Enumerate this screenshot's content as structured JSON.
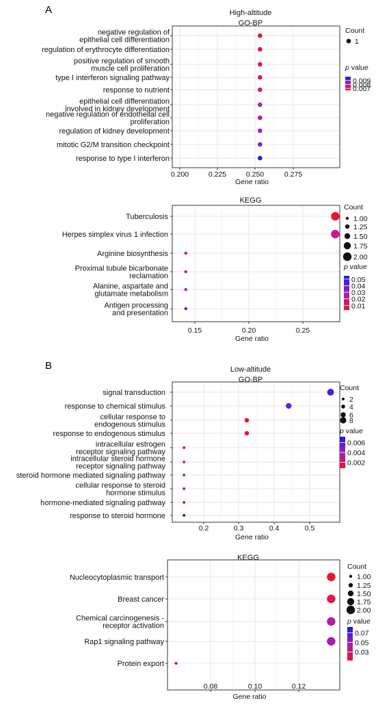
{
  "panels": [
    {
      "letter": "A"
    },
    {
      "letter": "B"
    }
  ],
  "chart_data": [
    {
      "type": "scatter",
      "title": "High-altitude",
      "subtitle": "GO-BP",
      "xlabel": "Gene ratio",
      "xlim": [
        0.195,
        0.3
      ],
      "xticks": [
        "0.200",
        "0.225",
        "0.250",
        "0.275"
      ],
      "categories": [
        "negative regulation of\nepithelial cell differentiation",
        "regulation of erythrocyte differentiation",
        "positive regulation of smooth\nmuscle cell proliferation",
        "type I interferon signaling pathway",
        "response to nutrient",
        "epithelial cell differentiation\ninvolved in kidney development",
        "negative regulation of endothelial cell\nproliferation",
        "regulation of kidney development",
        "mitotic G2/M transition checkpoint",
        "response to type I interferon"
      ],
      "x": [
        0.25,
        0.25,
        0.25,
        0.25,
        0.25,
        0.25,
        0.25,
        0.25,
        0.25,
        0.25
      ],
      "count": [
        1,
        1,
        1,
        1,
        1,
        1,
        1,
        1,
        1,
        1
      ],
      "pvalue": [
        0.0067,
        0.0068,
        0.007,
        0.0072,
        0.0074,
        0.0077,
        0.008,
        0.0083,
        0.0087,
        0.0098
      ],
      "legend": {
        "count_title": "Count",
        "count_labels": [
          "1"
        ],
        "count_values": [
          1
        ],
        "p_title": "p value",
        "p_ticks": [
          "0.009",
          "0.008",
          "0.007"
        ],
        "p_tick_values": [
          0.009,
          0.008,
          0.007
        ],
        "p_range": [
          0.0065,
          0.01
        ]
      },
      "grid": true
    },
    {
      "type": "scatter",
      "title": "KEGG",
      "xlabel": "Gene ratio",
      "xlim": [
        0.13,
        0.29
      ],
      "xticks": [
        "0.15",
        "0.20",
        "0.25"
      ],
      "categories": [
        "Tuberculosis",
        "Herpes simplex virus 1 infection",
        "Arginine biosynthesis",
        "Proximal tubule bicarbonate\nreclamation",
        "Alanine, aspartate and\nglutamate metabolism",
        "Antigen processing\nand presentation"
      ],
      "x": [
        0.2857,
        0.2857,
        0.1429,
        0.1429,
        0.1429,
        0.1429
      ],
      "count": [
        2,
        2,
        1,
        1,
        1,
        1
      ],
      "pvalue": [
        0.005,
        0.022,
        0.008,
        0.012,
        0.03,
        0.047
      ],
      "legend": {
        "count_title": "Count",
        "count_labels": [
          "1.00",
          "1.25",
          "1.50",
          "1.75",
          "2.00"
        ],
        "count_values": [
          1,
          1.25,
          1.5,
          1.75,
          2
        ],
        "p_title": "p value",
        "p_ticks": [
          "0.05",
          "0.04",
          "0.03",
          "0.02",
          "0.01"
        ],
        "p_tick_values": [
          0.05,
          0.04,
          0.03,
          0.02,
          0.01
        ],
        "p_range": [
          0.003,
          0.055
        ]
      },
      "grid": true
    },
    {
      "type": "scatter",
      "title": "Low-altitude",
      "subtitle": "GO-BP",
      "xlabel": "Gene ratio",
      "xlim": [
        0.09,
        0.59
      ],
      "xticks": [
        "0.2",
        "0.3",
        "0.4",
        "0.5"
      ],
      "categories": [
        "signal transduction",
        "response to chemical stimulus",
        "cellular response to\nendogenous stimulus",
        "response to endogenous stimulus",
        "intracellular estrogen\nreceptor signaling pathway",
        "intracellular steroid hormone\nreceptor signaling pathway",
        "steroid hormone mediated signaling pathway",
        "cellular response to steroid\nhormone stimulus",
        "hormone-mediated signaling pathway",
        "response to steroid hormone"
      ],
      "x": [
        0.5625,
        0.4375,
        0.3125,
        0.3125,
        0.125,
        0.125,
        0.125,
        0.125,
        0.125,
        0.125
      ],
      "count": [
        9,
        7,
        5,
        5,
        2,
        2,
        2,
        2,
        2,
        2
      ],
      "pvalue": [
        0.0062,
        0.0058,
        0.0012,
        0.0014,
        0.0016,
        0.0019,
        0.0025,
        0.0035,
        0.0045,
        0.0068
      ],
      "legend": {
        "count_title": "Count",
        "count_labels": [
          "2",
          "4",
          "6",
          "8"
        ],
        "count_values": [
          2,
          4,
          6,
          8
        ],
        "p_title": "p value",
        "p_ticks": [
          "0.006",
          "0.004",
          "0.002"
        ],
        "p_tick_values": [
          0.006,
          0.004,
          0.002
        ],
        "p_range": [
          0.0008,
          0.0072
        ]
      },
      "grid": true
    },
    {
      "type": "scatter",
      "title": "KEGG",
      "xlabel": "Gene ratio",
      "xlim": [
        0.063,
        0.137
      ],
      "xticks": [
        "0.08",
        "0.10",
        "0.12"
      ],
      "categories": [
        "Nucleocytoplasmic transport",
        "Breast cancer",
        "Chemical carcinogenesis -\nreceptor activation",
        "Rap1 signaling pathway",
        "Protein export"
      ],
      "x": [
        0.1333,
        0.1333,
        0.1333,
        0.1333,
        0.0667
      ],
      "count": [
        2,
        2,
        2,
        2,
        1
      ],
      "pvalue": [
        0.016,
        0.022,
        0.04,
        0.045,
        0.03
      ],
      "legend": {
        "count_title": "Count",
        "count_labels": [
          "1.00",
          "1.25",
          "1.50",
          "1.75",
          "2.00"
        ],
        "count_values": [
          1,
          1.25,
          1.5,
          1.75,
          2
        ],
        "p_title": "p value",
        "p_ticks": [
          "0.07",
          "0.05",
          "0.03"
        ],
        "p_tick_values": [
          0.07,
          0.05,
          0.03
        ],
        "p_range": [
          0.012,
          0.082
        ]
      },
      "grid": true
    }
  ],
  "colors": {
    "low_p": "#f0141e",
    "mid_p": "#c81e8c",
    "high_p": "#7a1fe6",
    "max_p": "#1a1ae6",
    "panel_border": "#333333",
    "grid": "#e6e6e6"
  }
}
